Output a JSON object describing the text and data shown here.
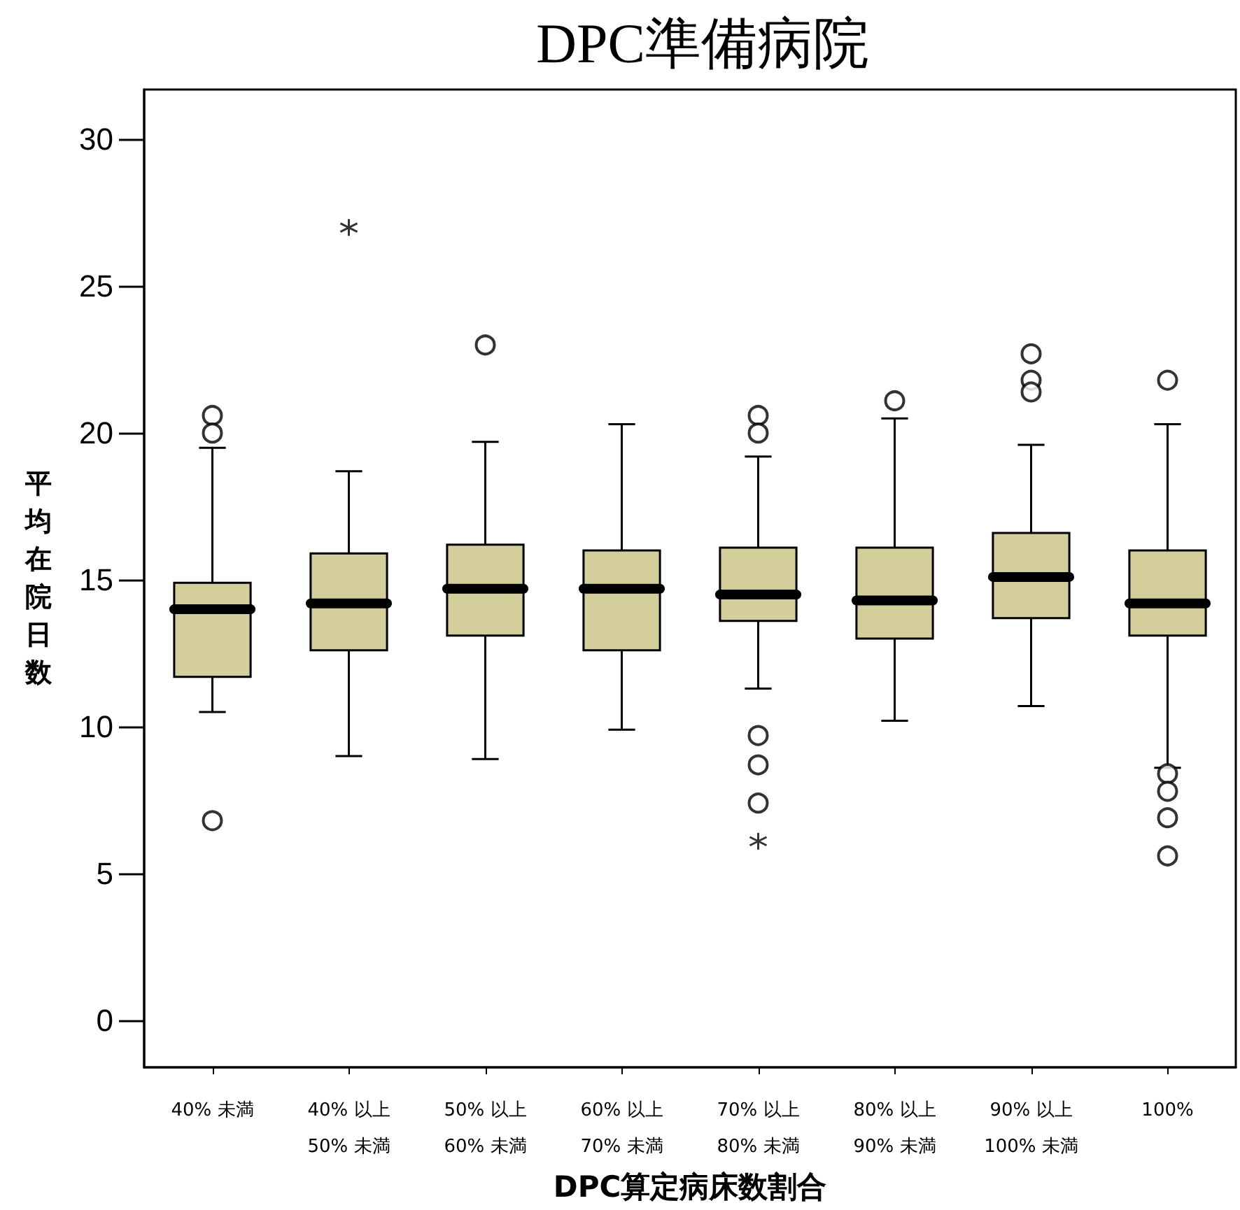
{
  "chart_data": {
    "type": "box",
    "title": "DPC準備病院",
    "xlabel": "DPC算定病床数割合",
    "ylabel": "平均在院日数",
    "categories": [
      "40% 未満",
      "40% 以上\n50% 未満",
      "50% 以上\n60% 未満",
      "60% 以上\n70% 未満",
      "70% 以上\n80% 未満",
      "80% 以上\n90% 未満",
      "90% 以上\n100% 未満",
      "100%"
    ],
    "color": "#d3ce9a",
    "boxes": [
      {
        "low": 10.5,
        "q1": 11.7,
        "median": 14.0,
        "q3": 14.9,
        "high": 19.5,
        "outliers": [
          20.6,
          20.0,
          6.8
        ]
      },
      {
        "low": 9.0,
        "q1": 12.6,
        "median": 14.2,
        "q3": 15.9,
        "high": 18.7
      },
      {
        "low": 8.9,
        "q1": 13.1,
        "median": 14.7,
        "q3": 16.2,
        "high": 19.7,
        "outliers": [
          23.0
        ]
      },
      {
        "low": 9.9,
        "q1": 12.6,
        "median": 14.7,
        "q3": 16.0,
        "high": 20.3
      },
      {
        "low": 11.3,
        "q1": 13.6,
        "median": 14.5,
        "q3": 16.1,
        "high": 19.2,
        "outliers": [
          20.6,
          20.0,
          9.7,
          8.7,
          7.4
        ]
      },
      {
        "low": 10.2,
        "q1": 13.0,
        "median": 14.3,
        "q3": 16.1,
        "high": 20.5,
        "outliers": [
          21.1
        ]
      },
      {
        "low": 10.7,
        "q1": 13.7,
        "median": 15.1,
        "q3": 16.6,
        "high": 19.6,
        "outliers": [
          22.7,
          21.8,
          21.4
        ]
      },
      {
        "low": 8.6,
        "q1": 13.1,
        "median": 14.2,
        "q3": 16.0,
        "high": 20.3,
        "outliers": [
          21.8,
          8.4,
          7.8,
          6.9,
          5.6
        ]
      }
    ],
    "series": [
      {
        "type": "scatter",
        "marker": "cross",
        "color": "#000000",
        "x": [
          "40% 以上\n50% 未満",
          "70% 以上\n80% 未満"
        ],
        "values": [
          27.0,
          6.1
        ]
      }
    ],
    "ylim": [
      -1.6,
      31.7
    ],
    "yticks": [
      0,
      5,
      10,
      15,
      20,
      25,
      30
    ],
    "grid": false
  }
}
